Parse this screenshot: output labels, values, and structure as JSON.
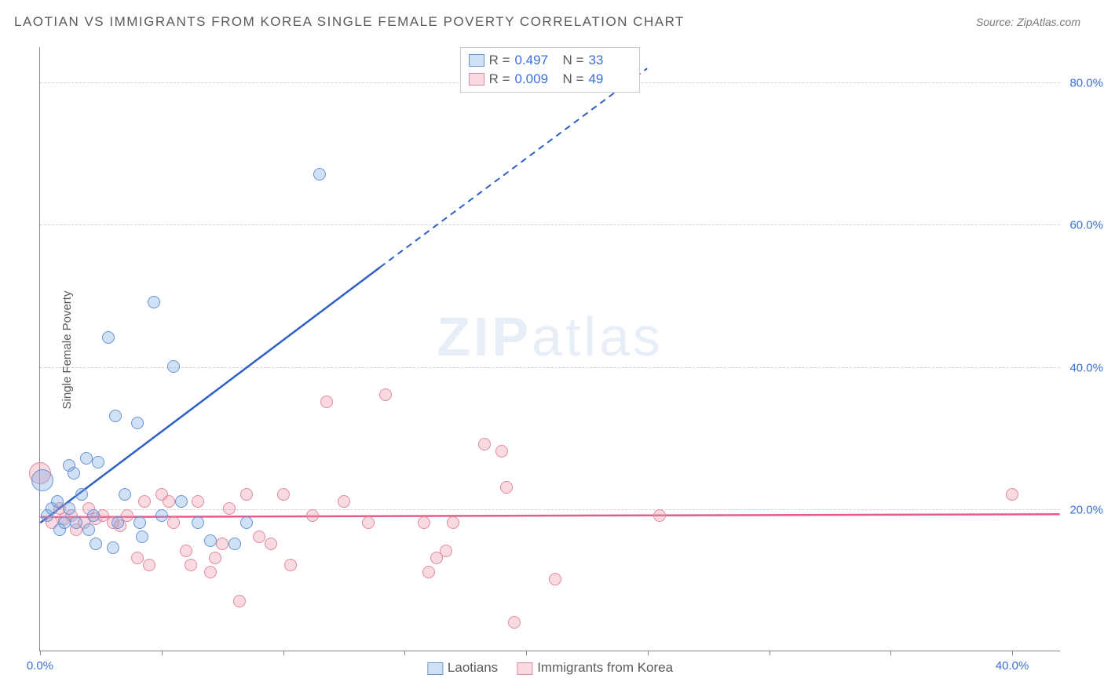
{
  "title": "LAOTIAN VS IMMIGRANTS FROM KOREA SINGLE FEMALE POVERTY CORRELATION CHART",
  "source": "Source: ZipAtlas.com",
  "ylabel": "Single Female Poverty",
  "watermark_zip": "ZIP",
  "watermark_atlas": "atlas",
  "chart": {
    "type": "scatter",
    "x_domain": [
      0,
      42
    ],
    "y_domain": [
      0,
      85
    ],
    "x_ticks": [
      0,
      5,
      10,
      15,
      20,
      25,
      30,
      35,
      40
    ],
    "x_tick_labels": {
      "0": "0.0%",
      "40": "40.0%"
    },
    "y_gridlines": [
      20,
      40,
      60,
      80
    ],
    "y_tick_labels": {
      "20": "20.0%",
      "40": "40.0%",
      "60": "60.0%",
      "80": "80.0%"
    },
    "grid_color": "#d0d0d0",
    "series": {
      "laotians": {
        "label": "Laotians",
        "fill": "rgba(120,165,225,0.35)",
        "stroke": "#6a94d4",
        "trend_color": "#2d5fc4",
        "R_label": "R  =",
        "R_value": "0.497",
        "N_label": "N  =",
        "N_value": "33",
        "trend": {
          "x1": 0,
          "y1": 18,
          "x2_solid": 14,
          "y2_solid": 54,
          "x2_dash": 25,
          "y2_dash": 82
        },
        "points": [
          {
            "x": 0.1,
            "y": 24,
            "r": 14
          },
          {
            "x": 0.3,
            "y": 19,
            "r": 8
          },
          {
            "x": 0.5,
            "y": 20,
            "r": 8
          },
          {
            "x": 0.7,
            "y": 21,
            "r": 8
          },
          {
            "x": 0.8,
            "y": 17,
            "r": 8
          },
          {
            "x": 1.0,
            "y": 18,
            "r": 8
          },
          {
            "x": 1.2,
            "y": 26,
            "r": 8
          },
          {
            "x": 1.2,
            "y": 20,
            "r": 8
          },
          {
            "x": 1.4,
            "y": 25,
            "r": 8
          },
          {
            "x": 1.5,
            "y": 18,
            "r": 8
          },
          {
            "x": 1.7,
            "y": 22,
            "r": 8
          },
          {
            "x": 1.9,
            "y": 27,
            "r": 8
          },
          {
            "x": 2.0,
            "y": 17,
            "r": 8
          },
          {
            "x": 2.2,
            "y": 19,
            "r": 8
          },
          {
            "x": 2.3,
            "y": 15,
            "r": 8
          },
          {
            "x": 2.4,
            "y": 26.5,
            "r": 8
          },
          {
            "x": 2.8,
            "y": 44,
            "r": 8
          },
          {
            "x": 3.0,
            "y": 14.5,
            "r": 8
          },
          {
            "x": 3.1,
            "y": 33,
            "r": 8
          },
          {
            "x": 3.2,
            "y": 18,
            "r": 8
          },
          {
            "x": 3.5,
            "y": 22,
            "r": 8
          },
          {
            "x": 4.0,
            "y": 32,
            "r": 8
          },
          {
            "x": 4.1,
            "y": 18,
            "r": 8
          },
          {
            "x": 4.2,
            "y": 16,
            "r": 8
          },
          {
            "x": 4.7,
            "y": 49,
            "r": 8
          },
          {
            "x": 5.0,
            "y": 19,
            "r": 8
          },
          {
            "x": 5.5,
            "y": 40,
            "r": 8
          },
          {
            "x": 5.8,
            "y": 21,
            "r": 8
          },
          {
            "x": 6.5,
            "y": 18,
            "r": 8
          },
          {
            "x": 7.0,
            "y": 15.5,
            "r": 8
          },
          {
            "x": 8.0,
            "y": 15,
            "r": 8
          },
          {
            "x": 8.5,
            "y": 18,
            "r": 8
          },
          {
            "x": 11.5,
            "y": 67,
            "r": 8
          }
        ]
      },
      "korea": {
        "label": "Immigrants from Korea",
        "fill": "rgba(240,150,170,0.35)",
        "stroke": "#e08aa0",
        "trend_color": "#e85a8a",
        "R_label": "R  =",
        "R_value": "0.009",
        "N_label": "N  =",
        "N_value": "49",
        "trend": {
          "x1": 0,
          "y1": 18.8,
          "x2_solid": 42,
          "y2_solid": 19.2,
          "x2_dash": 42,
          "y2_dash": 19.2
        },
        "points": [
          {
            "x": 0.0,
            "y": 25,
            "r": 14
          },
          {
            "x": 0.5,
            "y": 18,
            "r": 8
          },
          {
            "x": 0.8,
            "y": 20,
            "r": 8
          },
          {
            "x": 1.0,
            "y": 18.5,
            "r": 8
          },
          {
            "x": 1.3,
            "y": 19,
            "r": 8
          },
          {
            "x": 1.5,
            "y": 17,
            "r": 8
          },
          {
            "x": 1.8,
            "y": 18,
            "r": 8
          },
          {
            "x": 2.0,
            "y": 20,
            "r": 8
          },
          {
            "x": 2.3,
            "y": 18.5,
            "r": 8
          },
          {
            "x": 2.6,
            "y": 19,
            "r": 8
          },
          {
            "x": 3.0,
            "y": 18,
            "r": 8
          },
          {
            "x": 3.3,
            "y": 17.5,
            "r": 8
          },
          {
            "x": 3.6,
            "y": 19,
            "r": 8
          },
          {
            "x": 4.0,
            "y": 13,
            "r": 8
          },
          {
            "x": 4.3,
            "y": 21,
            "r": 8
          },
          {
            "x": 4.5,
            "y": 12,
            "r": 8
          },
          {
            "x": 5.0,
            "y": 22,
            "r": 8
          },
          {
            "x": 5.3,
            "y": 21,
            "r": 8
          },
          {
            "x": 5.5,
            "y": 18,
            "r": 8
          },
          {
            "x": 6.0,
            "y": 14,
            "r": 8
          },
          {
            "x": 6.2,
            "y": 12,
            "r": 8
          },
          {
            "x": 6.5,
            "y": 21,
            "r": 8
          },
          {
            "x": 7.0,
            "y": 11,
            "r": 8
          },
          {
            "x": 7.2,
            "y": 13,
            "r": 8
          },
          {
            "x": 7.5,
            "y": 15,
            "r": 8
          },
          {
            "x": 7.8,
            "y": 20,
            "r": 8
          },
          {
            "x": 8.2,
            "y": 7,
            "r": 8
          },
          {
            "x": 8.5,
            "y": 22,
            "r": 8
          },
          {
            "x": 9.0,
            "y": 16,
            "r": 8
          },
          {
            "x": 9.5,
            "y": 15,
            "r": 8
          },
          {
            "x": 10.0,
            "y": 22,
            "r": 8
          },
          {
            "x": 10.3,
            "y": 12,
            "r": 8
          },
          {
            "x": 11.2,
            "y": 19,
            "r": 8
          },
          {
            "x": 11.8,
            "y": 35,
            "r": 8
          },
          {
            "x": 12.5,
            "y": 21,
            "r": 8
          },
          {
            "x": 13.5,
            "y": 18,
            "r": 8
          },
          {
            "x": 14.2,
            "y": 36,
            "r": 8
          },
          {
            "x": 15.8,
            "y": 18,
            "r": 8
          },
          {
            "x": 16.0,
            "y": 11,
            "r": 8
          },
          {
            "x": 16.3,
            "y": 13,
            "r": 8
          },
          {
            "x": 16.7,
            "y": 14,
            "r": 8
          },
          {
            "x": 17.0,
            "y": 18,
            "r": 8
          },
          {
            "x": 18.3,
            "y": 29,
            "r": 8
          },
          {
            "x": 19.0,
            "y": 28,
            "r": 8
          },
          {
            "x": 19.2,
            "y": 23,
            "r": 8
          },
          {
            "x": 19.5,
            "y": 4,
            "r": 8
          },
          {
            "x": 21.2,
            "y": 10,
            "r": 8
          },
          {
            "x": 25.5,
            "y": 19,
            "r": 8
          },
          {
            "x": 40.0,
            "y": 22,
            "r": 8
          }
        ]
      }
    }
  }
}
